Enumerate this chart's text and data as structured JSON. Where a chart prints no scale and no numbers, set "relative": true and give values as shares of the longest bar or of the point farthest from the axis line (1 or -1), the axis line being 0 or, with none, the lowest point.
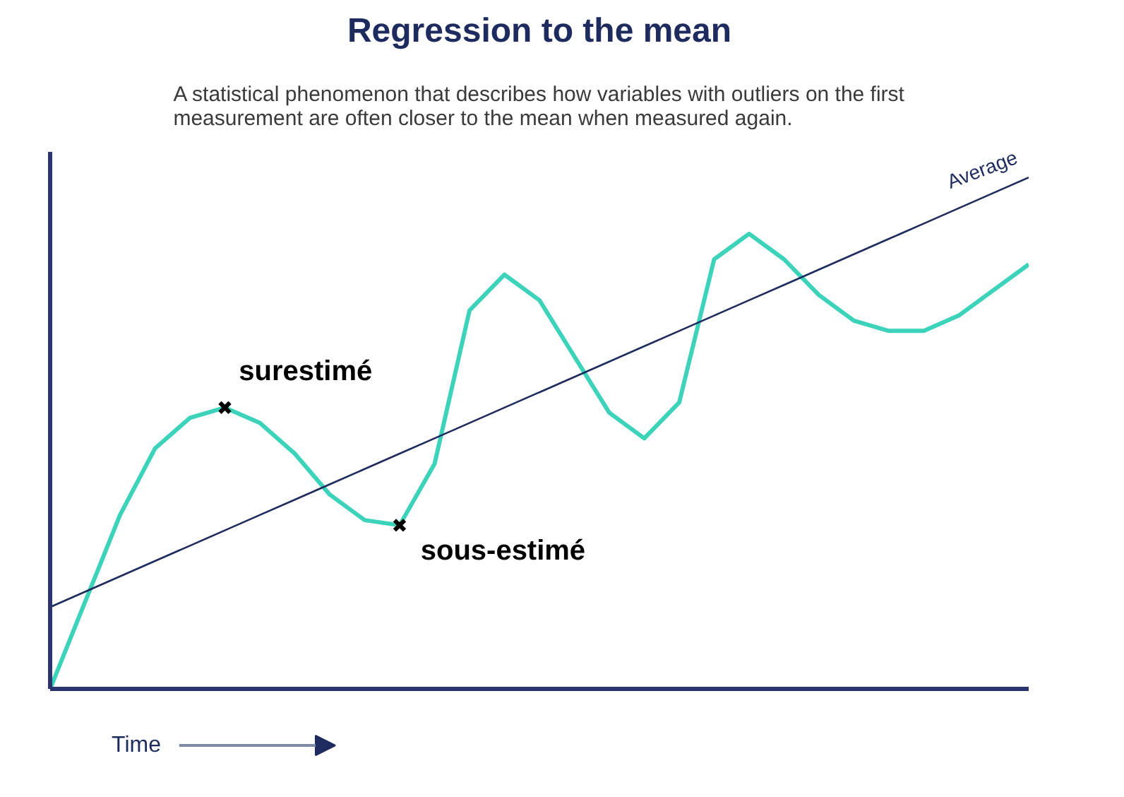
{
  "chart_data": {
    "type": "line",
    "title": "Regression to the mean",
    "subtitle": "A statistical phenomenon that describes how variables with outliers on the first\nmeasurement are often closer to the mean when measured again.",
    "xlabel": "Time",
    "relative": true,
    "grid": false,
    "legend": false,
    "marker": "none",
    "line_style": "solid",
    "categories": [
      null,
      null,
      null,
      null,
      null,
      null,
      null,
      null,
      null,
      null,
      null,
      null,
      null,
      null,
      null,
      null,
      null,
      null,
      null,
      null,
      null,
      null,
      null,
      null,
      null,
      null,
      null,
      null,
      null
    ],
    "series": [
      {
        "color": "#3dd3bb",
        "values": [
          0,
          0.17,
          0.34,
          0.47,
          0.53,
          0.55,
          0.52,
          0.46,
          0.38,
          0.33,
          0.32,
          0.44,
          0.74,
          0.81,
          0.76,
          0.65,
          0.54,
          0.49,
          0.56,
          0.84,
          0.89,
          0.84,
          0.77,
          0.72,
          0.7,
          0.7,
          0.73,
          0.78,
          0.83
        ]
      },
      {
        "name": "Average",
        "color": "#1e2b5e",
        "type": "line",
        "values": [
          0.16,
          0.19,
          0.22,
          0.25,
          0.28,
          0.31,
          0.34,
          0.37,
          0.4,
          0.43,
          0.46,
          0.49,
          0.52,
          0.55,
          0.58,
          0.61,
          0.64,
          0.67,
          0.7,
          0.73,
          0.76,
          0.79,
          0.82,
          0.85,
          0.88,
          0.91,
          0.94,
          0.97,
          1.0
        ]
      }
    ],
    "annotations": [
      "surestimé",
      "sous-estimé"
    ]
  }
}
